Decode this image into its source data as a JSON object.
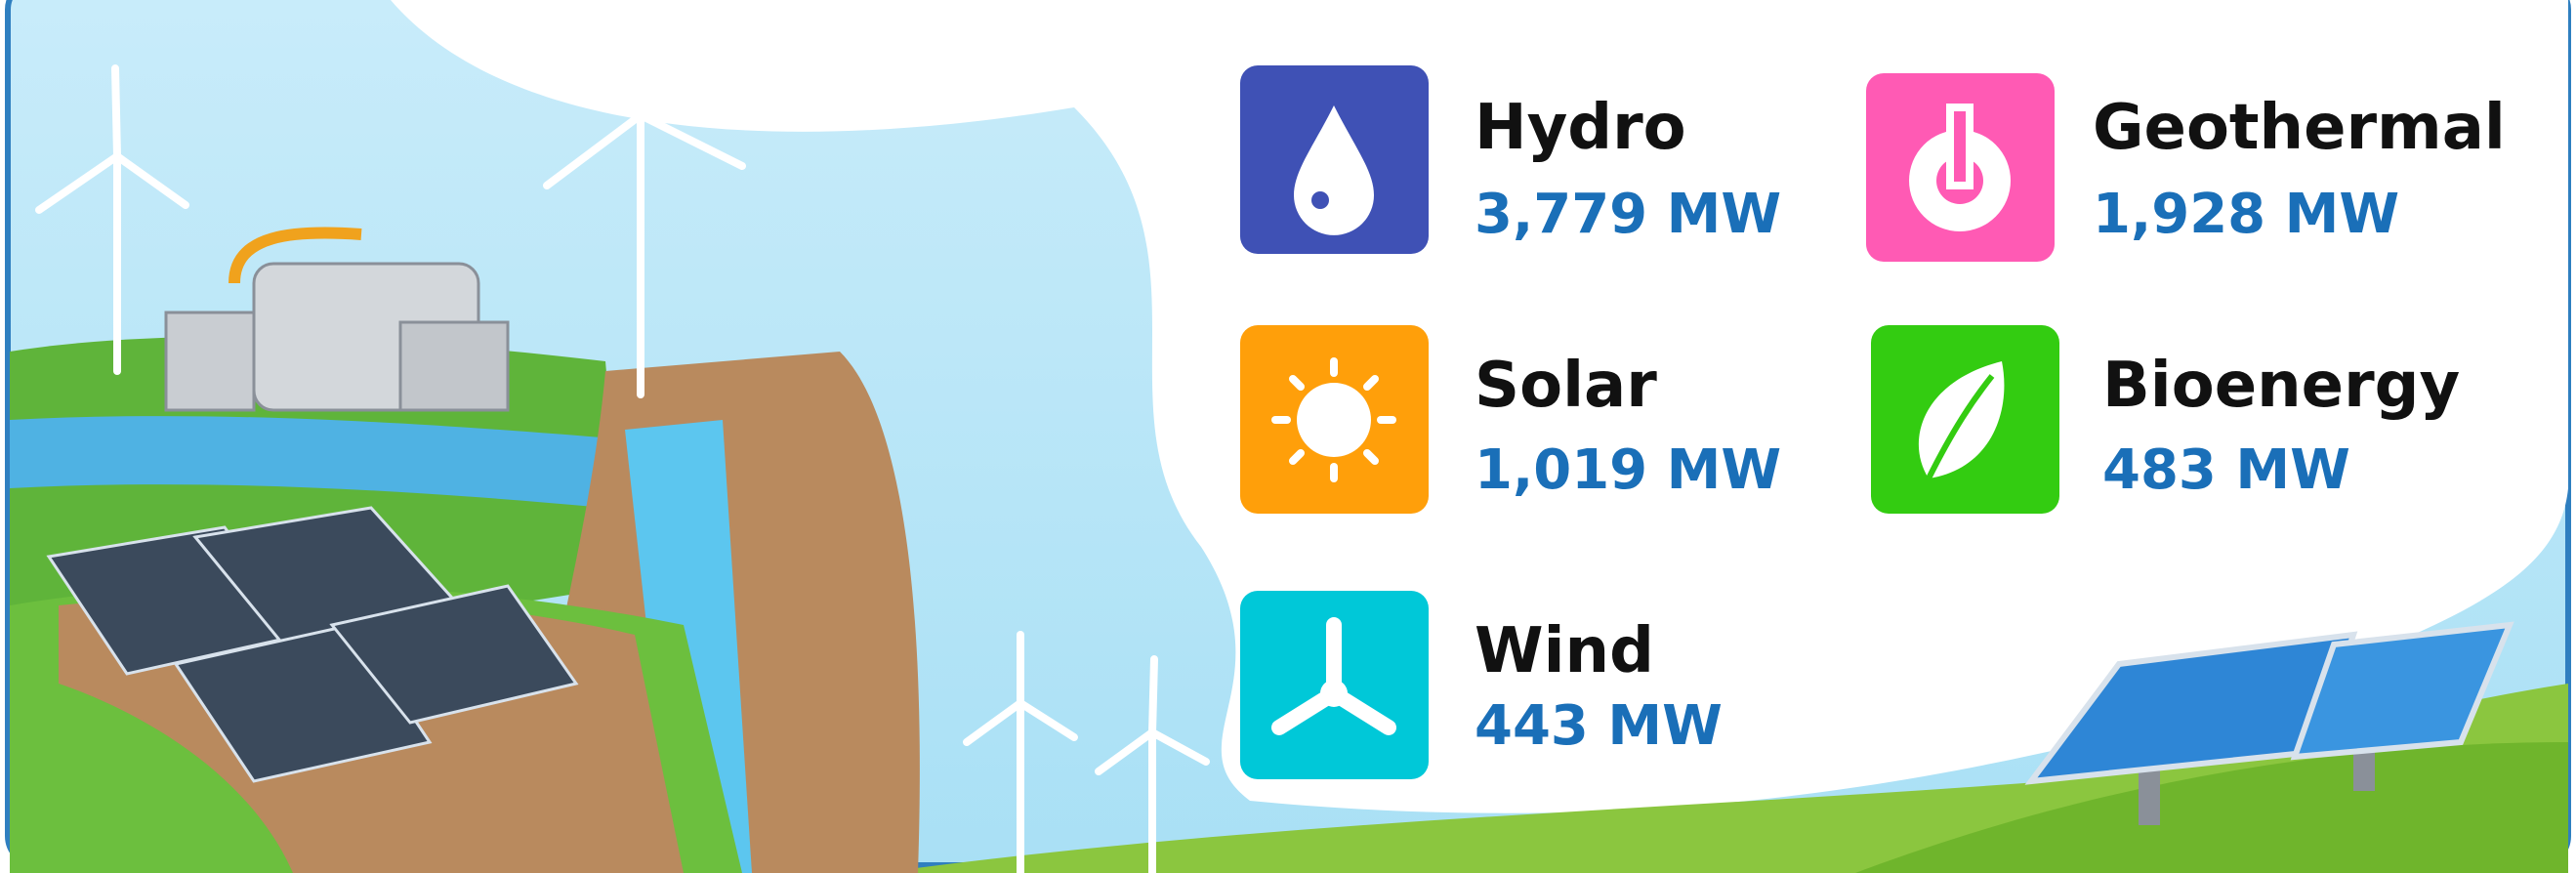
{
  "items": [
    {
      "label": "Hydro",
      "value": "3,779 MW"
    },
    {
      "label": "Geothermal",
      "value": "1,928 MW"
    },
    {
      "label": "Solar",
      "value": "1,019 MW"
    },
    {
      "label": "Bioenergy",
      "value": "483 MW"
    },
    {
      "label": "Wind",
      "value": "443 MW"
    }
  ]
}
